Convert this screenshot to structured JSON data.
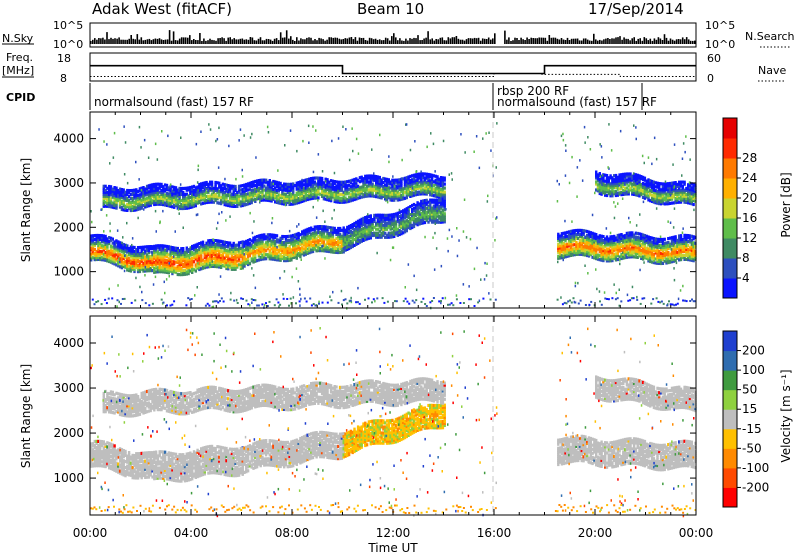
{
  "header": {
    "station": "Adak West (fitACF)",
    "beam": "Beam 10",
    "date": "17/Sep/2014"
  },
  "noise": {
    "left_label": "N.Sky",
    "left_ticks": [
      "10^5",
      "10^0"
    ],
    "right_label": "N.Search",
    "right_ticks": [
      "10^5",
      "10^0"
    ]
  },
  "freq": {
    "left_label_1": "Freq.",
    "left_label_2": "[MHz]",
    "left_ticks": [
      "18",
      "8"
    ],
    "right_label": "Nave",
    "right_ticks": [
      "60",
      "0"
    ]
  },
  "cpid": {
    "label": "CPID",
    "segments": [
      "normalsound (fast) 157 RF",
      "rbsp 200 RF",
      "normalsound (fast) 157 RF"
    ]
  },
  "axes": {
    "ylabel": "Slant Range [km]",
    "xlabel": "Time UT",
    "yticks": [
      "1000",
      "2000",
      "3000",
      "4000"
    ],
    "xticks": [
      "00:00",
      "04:00",
      "08:00",
      "12:00",
      "16:00",
      "20:00",
      "00:00"
    ]
  },
  "power_colorbar": {
    "label": "Power [dB]",
    "ticks": [
      "4",
      "8",
      "12",
      "16",
      "20",
      "24",
      "28"
    ],
    "colors": [
      "#0a14ff",
      "#2d4fbe",
      "#3f8a63",
      "#5fbd4a",
      "#c9d430",
      "#ffb000",
      "#ff7a00",
      "#ff2a00",
      "#e60000"
    ]
  },
  "velocity_colorbar": {
    "label": "Velocity [m s⁻¹]",
    "ticks": [
      "200",
      "100",
      "50",
      "15",
      "-15",
      "-50",
      "-100",
      "-200"
    ],
    "colors": [
      "#1f3fcf",
      "#2f6db0",
      "#3f9b3f",
      "#8fd13f",
      "#bebebe",
      "#ffc000",
      "#ff8a00",
      "#ff4a00",
      "#ff0000"
    ]
  },
  "chart_data": {
    "type": "heatmap",
    "title": "Adak West (fitACF)",
    "xlabel": "Time UT",
    "ylabel": "Slant Range [km]",
    "xlim": [
      0,
      24
    ],
    "ylim": [
      180,
      4600
    ],
    "series": [
      {
        "name": "Power [dB]",
        "colorbar_range": [
          0,
          32
        ]
      },
      {
        "name": "Velocity [m s⁻¹]",
        "colorbar_range": [
          -200,
          200
        ]
      }
    ],
    "echo_bands": [
      {
        "t_start": 0.0,
        "t_end": 2.5,
        "range_start": 1500,
        "range_end": 1200,
        "width": 280,
        "power": 28
      },
      {
        "t_start": 2.5,
        "t_end": 6.0,
        "range_start": 1200,
        "range_end": 1400,
        "width": 350,
        "power": 28
      },
      {
        "t_start": 6.0,
        "t_end": 10.0,
        "range_start": 1400,
        "range_end": 1750,
        "width": 300,
        "power": 24
      },
      {
        "t_start": 10.0,
        "t_end": 14.0,
        "range_start": 1750,
        "range_end": 2400,
        "width": 250,
        "power": 12
      },
      {
        "t_start": 0.5,
        "t_end": 14.0,
        "range_start": 2600,
        "range_end": 2900,
        "width": 180,
        "power": 16
      },
      {
        "t_start": 18.5,
        "t_end": 24.0,
        "range_start": 1600,
        "range_end": 1450,
        "width": 300,
        "power": 26
      },
      {
        "t_start": 20.0,
        "t_end": 24.0,
        "range_start": 3000,
        "range_end": 2650,
        "width": 180,
        "power": 16
      }
    ],
    "frequency_mhz": [
      {
        "t_start": 0.0,
        "t_end": 10.0,
        "value": 13.5
      },
      {
        "t_start": 10.0,
        "t_end": 18.0,
        "value": 10.5
      },
      {
        "t_start": 18.0,
        "t_end": 24.0,
        "value": 13.5
      }
    ],
    "cpid_boundaries_hours": [
      16.0,
      21.8
    ]
  }
}
